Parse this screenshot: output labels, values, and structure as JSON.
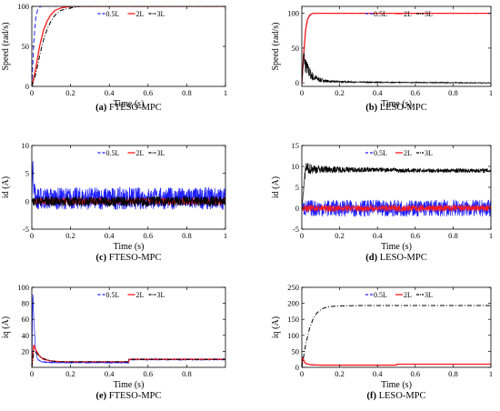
{
  "colors": {
    "l05": "#1f1fff",
    "l2": "#ff1a1a",
    "l3": "#000000"
  },
  "chart_data": [
    {
      "type": "line",
      "caption_label": "(a)",
      "caption_text": "FTESO-MPC",
      "xlabel": "Time (s)",
      "ylabel": "Speed (rad/s)",
      "xlim": [
        0,
        1
      ],
      "ylim": [
        0,
        100
      ],
      "xticks": [
        0,
        0.2,
        0.4,
        0.6,
        0.8,
        1
      ],
      "xtick_labels": [
        "0",
        "0.2",
        "0.4",
        "0.6",
        "0.8",
        "1"
      ],
      "yticks": [
        0,
        50,
        100
      ],
      "ytick_labels": [
        "0",
        "50",
        "100"
      ],
      "grid": false,
      "legend_position": "top-center",
      "series": [
        {
          "name": "0.5L",
          "style": "dashed",
          "color": "#1f1fff",
          "x": [
            0,
            0.01,
            0.02,
            0.03,
            0.04,
            0.05,
            0.06,
            1
          ],
          "y": [
            0,
            55,
            85,
            96,
            99,
            100,
            100,
            100
          ]
        },
        {
          "name": "2L",
          "style": "solid",
          "color": "#ff1a1a",
          "x": [
            0,
            0.02,
            0.04,
            0.06,
            0.08,
            0.1,
            0.12,
            0.15,
            0.2,
            1
          ],
          "y": [
            0,
            22,
            50,
            70,
            82,
            90,
            95,
            98,
            100,
            100
          ]
        },
        {
          "name": "3L",
          "style": "dashdot",
          "color": "#000000",
          "x": [
            0,
            0.02,
            0.04,
            0.06,
            0.08,
            0.1,
            0.12,
            0.15,
            0.2,
            0.25,
            1
          ],
          "y": [
            0,
            15,
            38,
            58,
            72,
            82,
            89,
            95,
            98,
            100,
            100
          ]
        }
      ]
    },
    {
      "type": "line",
      "caption_label": "(b)",
      "caption_text": "LESO-MPC",
      "xlabel": "Time (s)",
      "ylabel": "Speed (rad/s)",
      "xlim": [
        0,
        1
      ],
      "ylim": [
        -5,
        110
      ],
      "xticks": [
        0,
        0.2,
        0.4,
        0.6,
        0.8,
        1
      ],
      "xtick_labels": [
        "0",
        "0.2",
        "0.4",
        "0.6",
        "0.8",
        "1"
      ],
      "yticks": [
        0,
        50,
        100
      ],
      "ytick_labels": [
        "0",
        "50",
        "100"
      ],
      "grid": false,
      "legend_position": "top-center",
      "series": [
        {
          "name": "0.5L",
          "style": "dashed",
          "color": "#1f1fff",
          "x": [
            0,
            0.01,
            0.02,
            0.03,
            0.04,
            0.05,
            0.06,
            0.08,
            1
          ],
          "y": [
            0,
            40,
            75,
            90,
            96,
            99,
            100,
            100,
            100
          ]
        },
        {
          "name": "2L",
          "style": "solid",
          "color": "#ff1a1a",
          "x": [
            0,
            0.01,
            0.02,
            0.03,
            0.04,
            0.05,
            0.06,
            0.08,
            1
          ],
          "y": [
            0,
            42,
            76,
            91,
            97,
            99,
            100,
            100,
            100
          ]
        },
        {
          "name": "3L",
          "style": "dashdot",
          "color": "#000000",
          "x": [
            0,
            0.01,
            0.02,
            0.04,
            0.06,
            0.1,
            0.15,
            0.3,
            1
          ],
          "y": [
            0,
            40,
            24,
            15,
            8,
            4,
            2,
            1,
            0
          ],
          "oscillation_amplitude": [
            0,
            12,
            12,
            9,
            6,
            3,
            1.5,
            0.8,
            0.5
          ]
        }
      ]
    },
    {
      "type": "line",
      "caption_label": "(c)",
      "caption_text": "FTESO-MPC",
      "xlabel": "Time (s)",
      "ylabel": "id (A)",
      "xlim": [
        0,
        1
      ],
      "ylim": [
        -5,
        10
      ],
      "xticks": [
        0,
        0.2,
        0.4,
        0.6,
        0.8,
        1
      ],
      "xtick_labels": [
        "0",
        "0.2",
        "0.4",
        "0.6",
        "0.8",
        "1"
      ],
      "yticks": [
        -5,
        0,
        5,
        10
      ],
      "ytick_labels": [
        "-5",
        "0",
        "5",
        "10"
      ],
      "grid": false,
      "legend_position": "top-center",
      "series": [
        {
          "name": "0.5L",
          "style": "dashed",
          "color": "#1f1fff",
          "x": [
            0,
            0.005,
            0.01,
            0.02,
            1
          ],
          "y": [
            0,
            7.5,
            3,
            0.5,
            0.5
          ],
          "oscillation_amplitude": [
            0,
            0,
            2,
            2,
            2
          ]
        },
        {
          "name": "2L",
          "style": "solid",
          "color": "#ff1a1a",
          "x": [
            0,
            0.01,
            1
          ],
          "y": [
            0,
            0,
            0
          ],
          "oscillation_amplitude": [
            0,
            0.6,
            0.6
          ]
        },
        {
          "name": "3L",
          "style": "dashdot",
          "color": "#000000",
          "x": [
            0,
            0.01,
            1
          ],
          "y": [
            0,
            0,
            0
          ],
          "oscillation_amplitude": [
            0,
            0.9,
            0.9
          ]
        }
      ]
    },
    {
      "type": "line",
      "caption_label": "(d)",
      "caption_text": "LESO-MPC",
      "xlabel": "Time (s)",
      "ylabel": "id (A)",
      "xlim": [
        0,
        1
      ],
      "ylim": [
        -5,
        15
      ],
      "xticks": [
        0,
        0.2,
        0.4,
        0.6,
        0.8,
        1
      ],
      "xtick_labels": [
        "0",
        "0.2",
        "0.4",
        "0.6",
        "0.8",
        "1"
      ],
      "yticks": [
        -5,
        0,
        5,
        10,
        15
      ],
      "ytick_labels": [
        "-5",
        "0",
        "5",
        "10",
        "15"
      ],
      "grid": false,
      "legend_position": "top-center",
      "series": [
        {
          "name": "0.5L",
          "style": "dashed",
          "color": "#1f1fff",
          "x": [
            0,
            0.01,
            1
          ],
          "y": [
            0,
            0,
            0
          ],
          "oscillation_amplitude": [
            0,
            2,
            2
          ]
        },
        {
          "name": "2L",
          "style": "solid",
          "color": "#ff1a1a",
          "x": [
            0,
            0.01,
            1
          ],
          "y": [
            0,
            0,
            0
          ],
          "oscillation_amplitude": [
            0,
            0.8,
            0.8
          ]
        },
        {
          "name": "3L",
          "style": "dashdot",
          "color": "#000000",
          "x": [
            0,
            0.02,
            0.1,
            0.3,
            0.5,
            0.51,
            1
          ],
          "y": [
            0,
            9.5,
            9.3,
            9.2,
            9.2,
            9,
            9
          ],
          "oscillation_amplitude": [
            0,
            1.5,
            0.9,
            0.6,
            0.5,
            0.5,
            0.5
          ]
        }
      ]
    },
    {
      "type": "line",
      "caption_label": "(e)",
      "caption_text": "FTESO-MPC",
      "xlabel": "Time (s)",
      "ylabel": "iq (A)",
      "xlim": [
        0,
        1
      ],
      "ylim": [
        0,
        100
      ],
      "xticks": [
        0,
        0.2,
        0.4,
        0.6,
        0.8
      ],
      "xtick_labels": [
        "0",
        "0.2",
        "0.4",
        "0.6",
        "0.8"
      ],
      "yticks": [
        20,
        40,
        60,
        80,
        100
      ],
      "ytick_labels": [
        "20",
        "40",
        "60",
        "80",
        "100"
      ],
      "grid": false,
      "legend_position": "top-center",
      "series": [
        {
          "name": "0.5L",
          "style": "dashed",
          "color": "#1f1fff",
          "x": [
            0,
            0.005,
            0.01,
            0.02,
            0.03,
            0.05,
            0.1,
            0.5,
            0.501,
            1
          ],
          "y": [
            0,
            95,
            60,
            20,
            10,
            7,
            6,
            6,
            10,
            10
          ],
          "oscillation_amplitude": [
            0,
            0,
            0,
            0,
            0.5,
            0.5,
            0.6,
            0.6,
            0.8,
            0.8
          ]
        },
        {
          "name": "2L",
          "style": "solid",
          "color": "#ff1a1a",
          "x": [
            0,
            0.01,
            0.02,
            0.04,
            0.06,
            0.1,
            0.15,
            0.5,
            0.501,
            1
          ],
          "y": [
            0,
            28,
            22,
            14,
            10,
            8,
            7,
            7,
            10,
            10
          ]
        },
        {
          "name": "3L",
          "style": "dashdot",
          "color": "#000000",
          "x": [
            0,
            0.01,
            0.02,
            0.04,
            0.06,
            0.1,
            0.15,
            0.5,
            0.501,
            1
          ],
          "y": [
            0,
            20,
            19,
            14,
            11,
            8,
            7,
            7,
            10,
            10
          ]
        }
      ]
    },
    {
      "type": "line",
      "caption_label": "(f)",
      "caption_text": "LESO-MPC",
      "xlabel": "Time (s)",
      "ylabel": "iq (A)",
      "xlim": [
        0,
        1
      ],
      "ylim": [
        0,
        250
      ],
      "xticks": [
        0,
        0.2,
        0.4,
        0.6,
        0.8,
        1
      ],
      "xtick_labels": [
        "0",
        "0.2",
        "0.4",
        "0.6",
        "0.8",
        "1"
      ],
      "yticks": [
        0,
        50,
        100,
        150,
        200,
        250
      ],
      "ytick_labels": [
        "0",
        "50",
        "100",
        "150",
        "200",
        "250"
      ],
      "grid": false,
      "legend_position": "top-center",
      "series": [
        {
          "name": "0.5L",
          "style": "dashed",
          "color": "#1f1fff",
          "x": [
            0,
            0.005,
            0.02,
            0.05,
            0.1,
            0.5,
            0.501,
            1
          ],
          "y": [
            0,
            30,
            12,
            8,
            7,
            7,
            10,
            10
          ]
        },
        {
          "name": "2L",
          "style": "solid",
          "color": "#ff1a1a",
          "x": [
            0,
            0.005,
            0.02,
            0.05,
            0.1,
            0.5,
            0.501,
            1
          ],
          "y": [
            0,
            28,
            12,
            8,
            7,
            7,
            10,
            10
          ]
        },
        {
          "name": "3L",
          "style": "dashdot",
          "color": "#000000",
          "x": [
            0,
            0.02,
            0.04,
            0.06,
            0.08,
            0.1,
            0.12,
            0.15,
            0.2,
            0.3,
            1
          ],
          "y": [
            0,
            70,
            120,
            152,
            170,
            180,
            186,
            190,
            192,
            193,
            193
          ]
        }
      ]
    }
  ]
}
